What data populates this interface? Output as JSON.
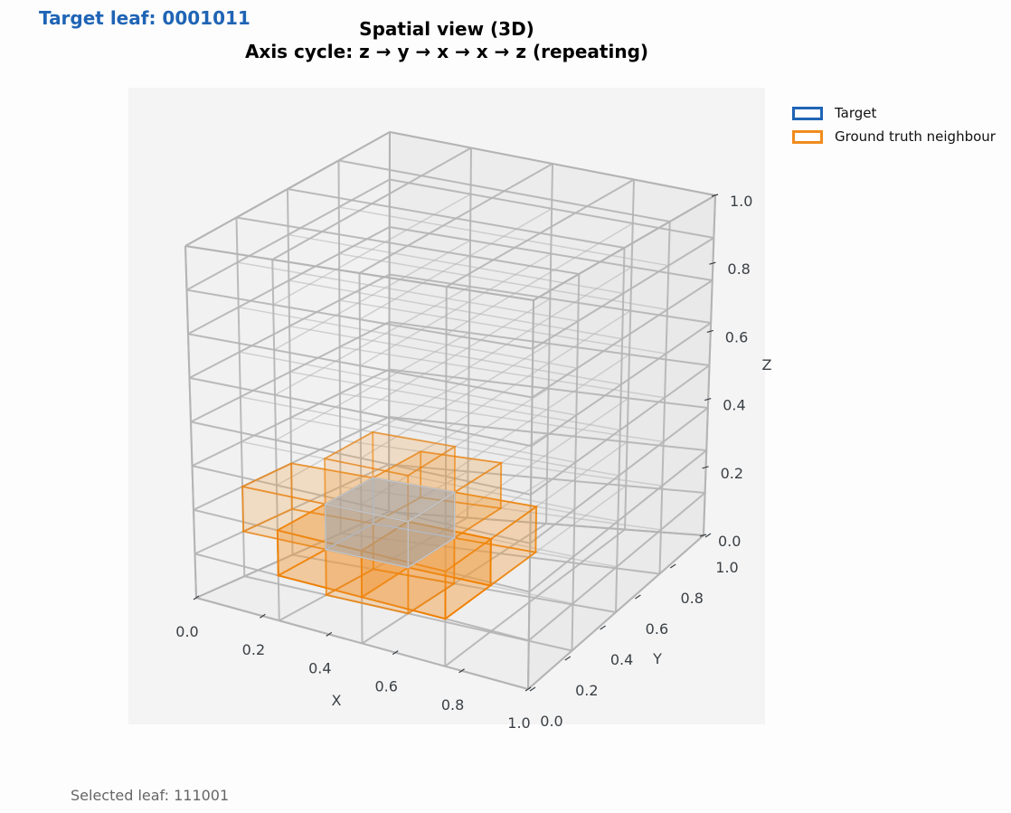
{
  "header": {
    "target_leaf_label": "Target leaf: 0001011",
    "title_line1": "Spatial view (3D)",
    "title_line2": "Axis cycle: z → y → x → x → z (repeating)"
  },
  "legend": {
    "items": [
      {
        "label": "Target",
        "color": "#1f64b5"
      },
      {
        "label": "Ground truth neighbour",
        "color": "#f08c1e"
      }
    ]
  },
  "footer": {
    "selected_leaf_label": "Selected leaf: 111001"
  },
  "colors": {
    "grid_edge": "#b4b4b4",
    "cell_face": "#e6e6e6",
    "neighbour_fill": "#f39a3a",
    "neighbour_edge": "#f08000",
    "target_fill": "#9aa3b0",
    "plot_bg": "#f4f4f4"
  },
  "chart_data": {
    "type": "3d-voxel",
    "title": "Spatial view (3D)\nAxis cycle: z → y → x → x → z (repeating)",
    "xlabel": "X",
    "ylabel": "Y",
    "zlabel": "Z",
    "xlim": [
      0,
      1
    ],
    "ylim": [
      0,
      1
    ],
    "zlim": [
      0,
      1
    ],
    "x_ticks": [
      "0.0",
      "0.2",
      "0.4",
      "0.6",
      "0.8",
      "1.0"
    ],
    "y_ticks": [
      "0.0",
      "0.2",
      "0.4",
      "0.6",
      "0.8",
      "1.0"
    ],
    "z_ticks": [
      "0.0",
      "0.2",
      "0.4",
      "0.6",
      "0.8",
      "1.0"
    ],
    "legend": [
      "Target",
      "Ground truth neighbour"
    ],
    "grid_divisions": {
      "x": 4,
      "y": 4,
      "z": 8
    },
    "target_leaf": "0001011",
    "selected_leaf": "111001",
    "target_box": {
      "x": [
        0.25,
        0.5
      ],
      "y": [
        0.25,
        0.5
      ],
      "z": [
        0.125,
        0.25
      ]
    },
    "neighbour_boxes": [
      {
        "x": [
          0.25,
          0.5
        ],
        "y": [
          0.0,
          0.25
        ],
        "z": [
          0.125,
          0.25
        ],
        "alpha": 0.55
      },
      {
        "x": [
          0.5,
          0.75
        ],
        "y": [
          0.0,
          0.25
        ],
        "z": [
          0.125,
          0.25
        ],
        "alpha": 0.55
      },
      {
        "x": [
          0.5,
          0.75
        ],
        "y": [
          0.25,
          0.5
        ],
        "z": [
          0.125,
          0.25
        ],
        "alpha": 0.4
      },
      {
        "x": [
          0.0,
          0.25
        ],
        "y": [
          0.25,
          0.5
        ],
        "z": [
          0.125,
          0.25
        ],
        "alpha": 0.3
      },
      {
        "x": [
          0.25,
          0.5
        ],
        "y": [
          0.5,
          0.75
        ],
        "z": [
          0.125,
          0.25
        ],
        "alpha": 0.3
      },
      {
        "x": [
          0.25,
          0.5
        ],
        "y": [
          0.25,
          0.5
        ],
        "z": [
          0.25,
          0.375
        ],
        "alpha": 0.25
      },
      {
        "x": [
          0.25,
          0.5
        ],
        "y": [
          0.25,
          0.5
        ],
        "z": [
          0.0,
          0.125
        ],
        "alpha": 0.35
      }
    ]
  }
}
